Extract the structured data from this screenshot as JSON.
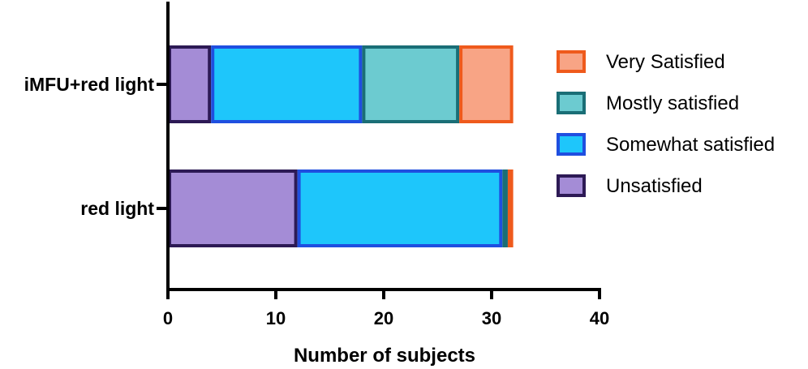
{
  "chart_data": {
    "type": "bar",
    "orientation": "horizontal",
    "stacked": true,
    "categories": [
      "iMFU+red light",
      "red light"
    ],
    "series": [
      {
        "name": "Unsatisfied",
        "values": [
          4,
          12
        ],
        "fill": "#a48cd6",
        "stroke": "#2d1a55"
      },
      {
        "name": "Somewhat satisfied",
        "values": [
          14,
          19
        ],
        "fill": "#1ec6fb",
        "stroke": "#1f4fe0"
      },
      {
        "name": "Mostly satisfied",
        "values": [
          9,
          0.5
        ],
        "fill": "#6ccbd0",
        "stroke": "#1a6e76"
      },
      {
        "name": "Very Satisfied",
        "values": [
          5,
          0.5
        ],
        "fill": "#f8a485",
        "stroke": "#ef5a1c"
      }
    ],
    "legend_order": [
      "Very Satisfied",
      "Mostly satisfied",
      "Somewhat satisfied",
      "Unsatisfied"
    ],
    "xlabel": "Number of subjects",
    "ylabel": "",
    "xlim": [
      0,
      40
    ],
    "xticks": [
      "0",
      "10",
      "20",
      "30",
      "40"
    ],
    "grid": false,
    "legend_position": "right"
  }
}
